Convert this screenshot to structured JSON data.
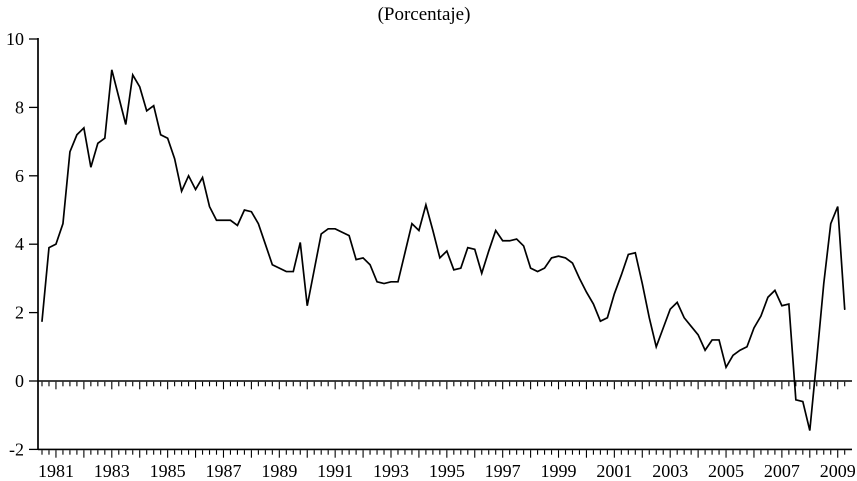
{
  "chart_data": {
    "type": "line",
    "title": "(Porcentaje)",
    "x_start": "1980Q3",
    "x_frequency": "quarterly",
    "x_tick_labels": [
      "1981",
      "1983",
      "1985",
      "1987",
      "1989",
      "1991",
      "1993",
      "1995",
      "1997",
      "1999",
      "2001",
      "2003",
      "2005",
      "2007",
      "2009"
    ],
    "y_ticks": [
      10,
      8,
      6,
      4,
      2,
      0,
      -2
    ],
    "ylim": [
      -2,
      10
    ],
    "grid": false,
    "legend": "none",
    "line_color": "#000000",
    "values": [
      1.75,
      3.9,
      4.0,
      4.6,
      6.7,
      7.2,
      7.4,
      6.25,
      6.95,
      7.1,
      9.1,
      8.3,
      7.5,
      8.95,
      8.6,
      7.9,
      8.05,
      7.2,
      7.1,
      6.5,
      5.55,
      6.0,
      5.6,
      5.95,
      5.1,
      4.7,
      4.7,
      4.7,
      4.55,
      5.0,
      4.95,
      4.6,
      4.0,
      3.4,
      3.3,
      3.2,
      3.2,
      4.05,
      2.2,
      3.25,
      4.3,
      4.45,
      4.45,
      4.35,
      4.25,
      3.55,
      3.6,
      3.4,
      2.9,
      2.85,
      2.9,
      2.9,
      3.75,
      4.6,
      4.4,
      5.15,
      4.4,
      3.6,
      3.8,
      3.25,
      3.3,
      3.9,
      3.85,
      3.15,
      3.8,
      4.4,
      4.1,
      4.1,
      4.15,
      3.95,
      3.3,
      3.2,
      3.3,
      3.6,
      3.65,
      3.6,
      3.45,
      3.0,
      2.6,
      2.25,
      1.75,
      1.85,
      2.55,
      3.1,
      3.7,
      3.75,
      2.85,
      1.85,
      1.0,
      1.55,
      2.1,
      2.3,
      1.85,
      1.6,
      1.35,
      0.9,
      1.2,
      1.2,
      0.4,
      0.75,
      0.9,
      1.0,
      1.55,
      1.9,
      2.45,
      2.65,
      2.2,
      2.25,
      -0.55,
      -0.6,
      -1.45,
      0.65,
      2.85,
      4.6,
      5.1,
      2.1
    ]
  }
}
